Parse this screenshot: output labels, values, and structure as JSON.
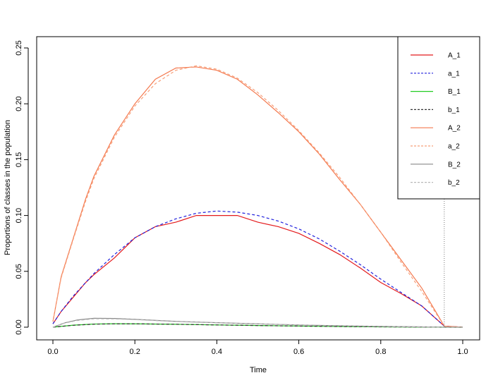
{
  "chart_data": {
    "type": "line",
    "xlabel": "Time",
    "ylabel": "Proportions of classes in the population",
    "xlim": [
      0,
      1
    ],
    "ylim": [
      0,
      0.25
    ],
    "x_ticks": [
      "0.0",
      "0.2",
      "0.4",
      "0.6",
      "0.8",
      "1.0"
    ],
    "y_ticks": [
      "0.00",
      "0.05",
      "0.10",
      "0.15",
      "0.20",
      "0.25"
    ],
    "vline_x": 0.955,
    "legend_position": "top-right",
    "series": [
      {
        "name": "A_1",
        "color": "#e41a1c",
        "dash": "solid",
        "x": [
          0,
          0.02,
          0.05,
          0.08,
          0.1,
          0.15,
          0.2,
          0.25,
          0.3,
          0.35,
          0.4,
          0.45,
          0.5,
          0.55,
          0.6,
          0.65,
          0.7,
          0.75,
          0.8,
          0.85,
          0.9,
          0.955,
          1.0
        ],
        "y": [
          0.003,
          0.014,
          0.027,
          0.04,
          0.047,
          0.062,
          0.08,
          0.09,
          0.094,
          0.1,
          0.1,
          0.1,
          0.094,
          0.09,
          0.084,
          0.075,
          0.065,
          0.053,
          0.04,
          0.03,
          0.019,
          0.001,
          0.0
        ]
      },
      {
        "name": "a_1",
        "color": "#2222dd",
        "dash": "dashed",
        "x": [
          0,
          0.02,
          0.05,
          0.08,
          0.1,
          0.15,
          0.2,
          0.25,
          0.3,
          0.35,
          0.4,
          0.45,
          0.5,
          0.55,
          0.6,
          0.65,
          0.7,
          0.75,
          0.8,
          0.85,
          0.9,
          0.955,
          1.0
        ],
        "y": [
          0.003,
          0.014,
          0.028,
          0.04,
          0.048,
          0.065,
          0.08,
          0.09,
          0.097,
          0.102,
          0.104,
          0.103,
          0.1,
          0.095,
          0.088,
          0.079,
          0.068,
          0.056,
          0.043,
          0.031,
          0.019,
          0.001,
          0.0
        ]
      },
      {
        "name": "B_1",
        "color": "#22cc22",
        "dash": "solid",
        "x": [
          0,
          0.05,
          0.1,
          0.15,
          0.2,
          0.3,
          0.4,
          0.5,
          0.6,
          0.7,
          0.8,
          0.9,
          0.955,
          1.0
        ],
        "y": [
          0.0,
          0.0018,
          0.0028,
          0.0031,
          0.003,
          0.0026,
          0.002,
          0.0015,
          0.001,
          0.0006,
          0.0003,
          0.0001,
          0.0,
          0.0
        ]
      },
      {
        "name": "b_1",
        "color": "#333333",
        "dash": "dashed",
        "x": [
          0,
          0.05,
          0.1,
          0.15,
          0.2,
          0.3,
          0.4,
          0.5,
          0.6,
          0.7,
          0.8,
          0.9,
          0.955,
          1.0
        ],
        "y": [
          0.0,
          0.0017,
          0.0027,
          0.003,
          0.003,
          0.0026,
          0.002,
          0.0015,
          0.001,
          0.0006,
          0.0003,
          0.0001,
          0.0,
          0.0
        ]
      },
      {
        "name": "A_2",
        "color": "#f4794f",
        "dash": "solid",
        "x": [
          0,
          0.02,
          0.05,
          0.08,
          0.1,
          0.15,
          0.2,
          0.25,
          0.3,
          0.35,
          0.4,
          0.45,
          0.5,
          0.55,
          0.6,
          0.65,
          0.7,
          0.75,
          0.8,
          0.85,
          0.9,
          0.955,
          1.0
        ],
        "y": [
          0.005,
          0.045,
          0.08,
          0.115,
          0.135,
          0.172,
          0.2,
          0.222,
          0.232,
          0.233,
          0.23,
          0.222,
          0.208,
          0.192,
          0.175,
          0.155,
          0.132,
          0.11,
          0.085,
          0.06,
          0.035,
          0.001,
          0.0
        ]
      },
      {
        "name": "a_2",
        "color": "#f7a07a",
        "dash": "dashed",
        "x": [
          0,
          0.02,
          0.05,
          0.08,
          0.1,
          0.15,
          0.2,
          0.25,
          0.3,
          0.35,
          0.4,
          0.45,
          0.5,
          0.55,
          0.6,
          0.65,
          0.7,
          0.75,
          0.8,
          0.85,
          0.9,
          0.955,
          1.0
        ],
        "y": [
          0.005,
          0.044,
          0.079,
          0.113,
          0.133,
          0.17,
          0.198,
          0.218,
          0.23,
          0.234,
          0.231,
          0.223,
          0.21,
          0.194,
          0.176,
          0.156,
          0.134,
          0.11,
          0.085,
          0.058,
          0.032,
          0.001,
          0.0
        ]
      },
      {
        "name": "B_2",
        "color": "#888888",
        "dash": "solid",
        "x": [
          0,
          0.03,
          0.06,
          0.1,
          0.15,
          0.2,
          0.3,
          0.4,
          0.5,
          0.6,
          0.7,
          0.8,
          0.9,
          0.955,
          1.0
        ],
        "y": [
          0.0,
          0.004,
          0.0065,
          0.008,
          0.0078,
          0.007,
          0.0052,
          0.004,
          0.003,
          0.002,
          0.0013,
          0.0007,
          0.0003,
          0.0,
          0.0
        ]
      },
      {
        "name": "b_2",
        "color": "#b8b8b8",
        "dash": "dashed",
        "x": [
          0,
          0.03,
          0.06,
          0.1,
          0.15,
          0.2,
          0.3,
          0.4,
          0.5,
          0.6,
          0.7,
          0.8,
          0.9,
          0.955,
          1.0
        ],
        "y": [
          0.0,
          0.0038,
          0.006,
          0.0075,
          0.0074,
          0.0068,
          0.005,
          0.0039,
          0.0029,
          0.002,
          0.0013,
          0.0007,
          0.0003,
          0.0,
          0.0
        ]
      }
    ]
  }
}
